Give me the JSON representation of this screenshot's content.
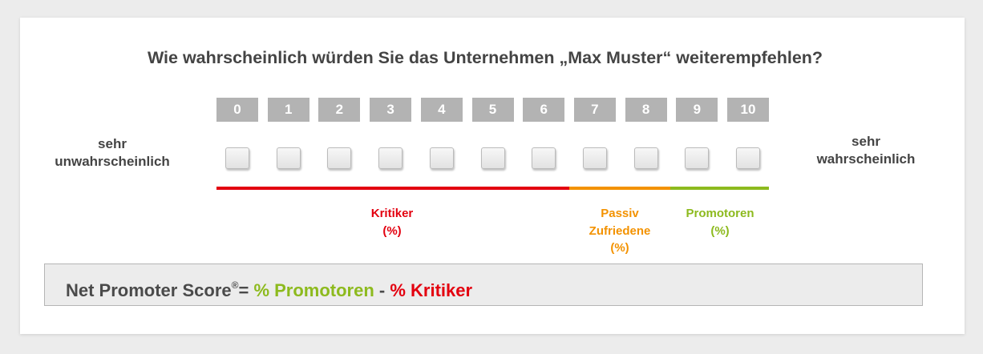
{
  "question": "Wie wahrscheinlich würden Sie das Unternehmen „Max Muster“ weiterempfehlen?",
  "scale": [
    "0",
    "1",
    "2",
    "3",
    "4",
    "5",
    "6",
    "7",
    "8",
    "9",
    "10"
  ],
  "left_label": {
    "line1": "sehr",
    "line2": "unwahrscheinlich"
  },
  "right_label": {
    "line1": "sehr",
    "line2": "wahrscheinlich"
  },
  "groups": {
    "critics": {
      "line1": "Kritiker",
      "line2": "(%)",
      "color": "#e3000f",
      "range": "0-6"
    },
    "passive": {
      "line1": "Passiv",
      "line2": "Zufriedene",
      "line3": "(%)",
      "color": "#f39200",
      "range": "7-8"
    },
    "promoters": {
      "line1": "Promotoren",
      "line2": "(%)",
      "color": "#8dba1e",
      "range": "9-10"
    }
  },
  "formula": {
    "prefix": "Net Promoter Score",
    "reg": "®",
    "equals": "= ",
    "promoters": "% Promotoren",
    "minus": " - ",
    "critics": "% Kritiker"
  }
}
